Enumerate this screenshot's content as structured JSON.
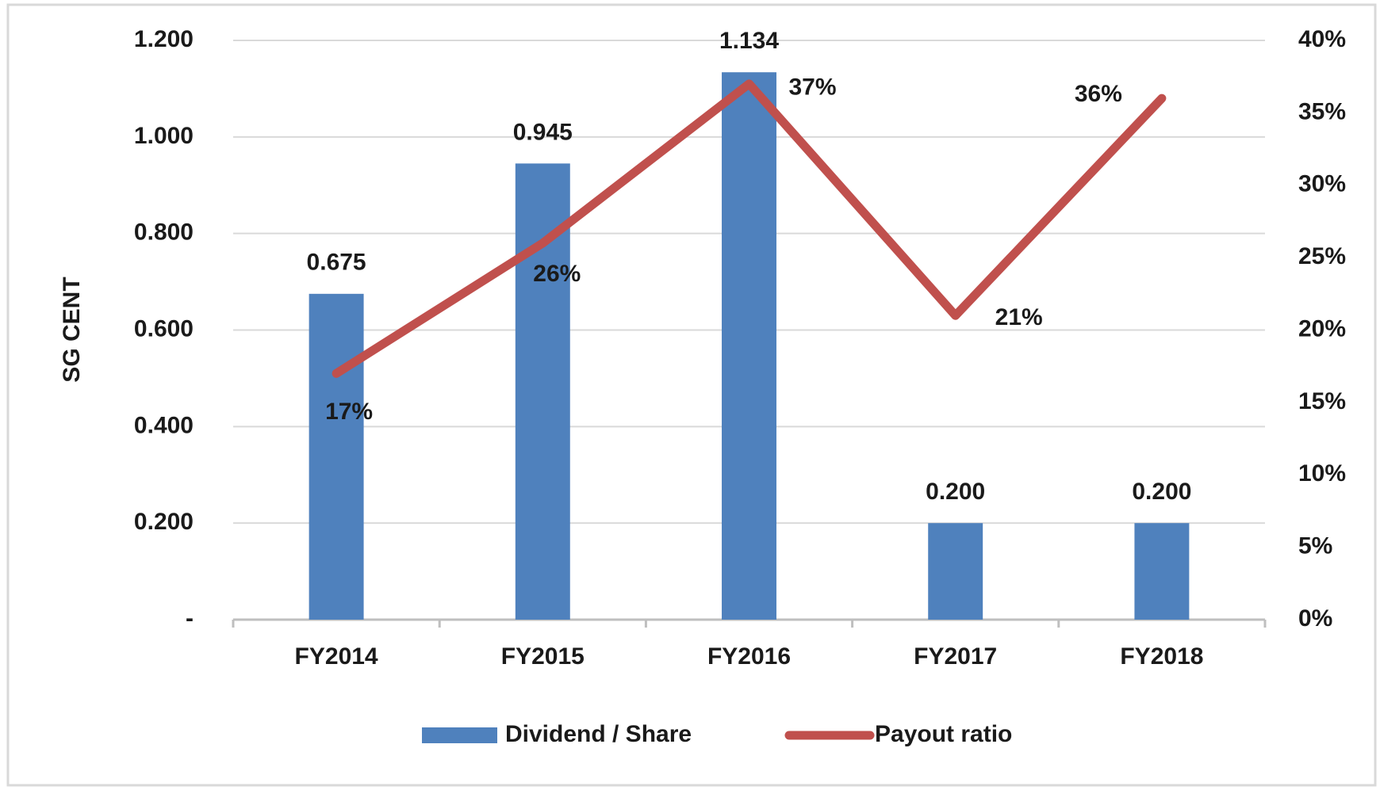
{
  "chart_data": {
    "type": "bar",
    "y_label": "SG CENT",
    "categories": [
      "FY2014",
      "FY2015",
      "FY2016",
      "FY2017",
      "FY2018"
    ],
    "series": [
      {
        "name": "Dividend / Share",
        "type": "bar",
        "color": "#4f81bd",
        "values": [
          0.675,
          0.945,
          1.134,
          0.2,
          0.2
        ],
        "value_labels": [
          "0.675",
          "0.945",
          "1.134",
          "0.200",
          "0.200"
        ]
      },
      {
        "name": "Payout ratio",
        "type": "line",
        "axis": "y2",
        "color": "#c0504d",
        "values": [
          17,
          26,
          37,
          21,
          36
        ],
        "value_labels": [
          "17%",
          "26%",
          "37%",
          "21%",
          "36%"
        ]
      }
    ],
    "ylim": [
      0,
      1.2
    ],
    "yticks": [
      {
        "value": 0,
        "label": "-"
      },
      {
        "value": 0.2,
        "label": "0.200"
      },
      {
        "value": 0.4,
        "label": "0.400"
      },
      {
        "value": 0.6,
        "label": "0.600"
      },
      {
        "value": 0.8,
        "label": "0.800"
      },
      {
        "value": 1.0,
        "label": "1.000"
      },
      {
        "value": 1.2,
        "label": "1.200"
      }
    ],
    "y2lim": [
      0,
      40
    ],
    "y2ticks": [
      {
        "value": 0,
        "label": "0%"
      },
      {
        "value": 5,
        "label": "5%"
      },
      {
        "value": 10,
        "label": "10%"
      },
      {
        "value": 15,
        "label": "15%"
      },
      {
        "value": 20,
        "label": "20%"
      },
      {
        "value": 25,
        "label": "25%"
      },
      {
        "value": 30,
        "label": "30%"
      },
      {
        "value": 35,
        "label": "35%"
      },
      {
        "value": 40,
        "label": "40%"
      }
    ],
    "grid": true,
    "legend": "bottom"
  }
}
